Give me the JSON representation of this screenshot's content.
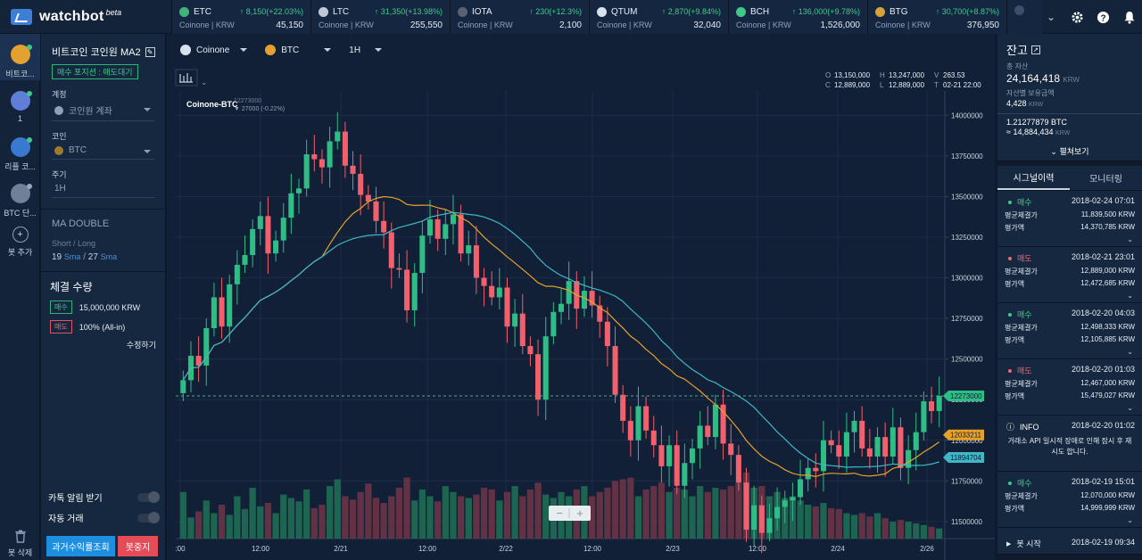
{
  "brand": {
    "name": "watchbot",
    "beta": "beta"
  },
  "tickers": [
    {
      "symbol": "ETC",
      "change": "↑ 8,150(+22.03%)",
      "exchange": "Coinone | KRW",
      "price": "45,150",
      "color": "#3fb37a"
    },
    {
      "symbol": "LTC",
      "change": "↑ 31,350(+13.98%)",
      "exchange": "Coinone | KRW",
      "price": "255,550",
      "color": "#bfc7d3"
    },
    {
      "symbol": "IOTA",
      "change": "↑ 230(+12.3%)",
      "exchange": "Coinone | KRW",
      "price": "2,100",
      "color": "#5a6170"
    },
    {
      "symbol": "QTUM",
      "change": "↑ 2,870(+9.84%)",
      "exchange": "Coinone | KRW",
      "price": "32,040",
      "color": "#d8e2ee"
    },
    {
      "symbol": "BCH",
      "change": "↑ 136,000(+9.78%)",
      "exchange": "Coinone | KRW",
      "price": "1,526,000",
      "color": "#3ec98b"
    },
    {
      "symbol": "BTG",
      "change": "↑ 30,700(+8.87%)",
      "exchange": "Coinone | KRW",
      "price": "376,950",
      "color": "#d6a33b"
    }
  ],
  "top_icons": [
    "chevron-down-icon",
    "gear-icon",
    "help-icon",
    "bell-icon"
  ],
  "rail": {
    "items": [
      {
        "label": "비트코...",
        "icon": "bitcoin-icon",
        "color": "#e3a12f",
        "dot": "green"
      },
      {
        "label": "1",
        "icon": "ethereum-icon",
        "color": "#5f7fd6",
        "dot": "green"
      },
      {
        "label": "리플 코...",
        "icon": "ripple-icon",
        "color": "#3a79d0",
        "dot": "green"
      },
      {
        "label": "BTC 단...",
        "icon": "bot-icon",
        "color": "#6f8098",
        "dot": "gray"
      }
    ],
    "add_label": "봇 추가",
    "delete_label": "봇 삭제"
  },
  "bot": {
    "title": "비트코인 코인원 MA2",
    "position_badge": "매수 포지션 : 매도대기",
    "account_label": "계정",
    "account_value": "코인원 계좌",
    "coin_label": "코인",
    "coin_value": "BTC",
    "period_label": "주기",
    "period_value": "1H",
    "strategy_name": "MA DOUBLE",
    "short_long_label": "Short / Long",
    "short_value": "19",
    "long_value": "27",
    "ma_unit": "Sma",
    "exec_title": "체결 수량",
    "buy_tag": "매수",
    "buy_amount": "15,000,000 KRW",
    "sell_tag": "매도",
    "sell_amount": "100% (All-in)",
    "modify_label": "수정하기",
    "kakao_label": "카톡 알림 받기",
    "auto_label": "자동 거래",
    "history_button": "과거수익률조회",
    "stop_button": "봇중지"
  },
  "chart_bar": {
    "exchange": "Coinone",
    "coin": "BTC",
    "interval": "1H"
  },
  "chart_data": {
    "type": "candlestick",
    "title": "Coinone-BTC",
    "last_price": "12273000",
    "last_change": "27000 (-0.22%)",
    "ohlc": {
      "o_label": "O",
      "o": "13,150,000",
      "h_label": "H",
      "h": "13,247,000",
      "v_label": "V",
      "v": "263.53",
      "c_label": "C",
      "c": "12,889,000",
      "l_label": "L",
      "l": "12,889,000",
      "t_label": "T",
      "t": "02-21 22:00"
    },
    "y_ticks": [
      11500000,
      11750000,
      12000000,
      12250000,
      12500000,
      12750000,
      13000000,
      13250000,
      13500000,
      13750000,
      14000000
    ],
    "ylim": [
      11395000,
      14150000
    ],
    "x_ticks": [
      ":00",
      "12:00",
      "2/21",
      "12:00",
      "2/22",
      "12:00",
      "2/23",
      "12:00",
      "2/24",
      "2/26"
    ],
    "price_labels": {
      "last": "12273000",
      "ma_short": "12033211",
      "ma_long": "11894704"
    },
    "colors": {
      "up": "#2ebd85",
      "down": "#f0616d",
      "ma_short": "#e6a12a",
      "ma_long": "#3fb7c7"
    },
    "closes": [
      12370000,
      12520000,
      12460000,
      12690000,
      12880000,
      12700000,
      12960000,
      13080000,
      13140000,
      13300000,
      13380000,
      13150000,
      13230000,
      13370000,
      13520000,
      13550000,
      13760000,
      13730000,
      13680000,
      13840000,
      13900000,
      13690000,
      13640000,
      13510000,
      13470000,
      13350000,
      13280000,
      13060000,
      13050000,
      12800000,
      13030000,
      13260000,
      13360000,
      13240000,
      13330000,
      13390000,
      13150000,
      13200000,
      13000000,
      12950000,
      12880000,
      12940000,
      12700000,
      12780000,
      12580000,
      12530000,
      12250000,
      12640000,
      12790000,
      12840000,
      12980000,
      12810000,
      12920000,
      12830000,
      12730000,
      12580000,
      12280000,
      12120000,
      12000000,
      12210000,
      12060000,
      11970000,
      11840000,
      11970000,
      11720000,
      11860000,
      11950000,
      12090000,
      12020000,
      12220000,
      11980000,
      11910000,
      11740000,
      11450000,
      11600000,
      11430000,
      11520000,
      11590000,
      11630000,
      11650000,
      11760000,
      11830000,
      11810000,
      12000000,
      11970000,
      11900000,
      12050000,
      12120000,
      11950000,
      11900000,
      12020000,
      11900000,
      12080000,
      11830000,
      11940000,
      12050000,
      12240000,
      12180000,
      12273000
    ],
    "volumes": [
      0.55,
      0.25,
      0.32,
      0.45,
      0.3,
      0.4,
      0.28,
      0.5,
      0.35,
      0.6,
      0.38,
      0.42,
      0.3,
      0.52,
      0.48,
      0.44,
      0.58,
      0.36,
      0.4,
      0.62,
      0.7,
      0.5,
      0.46,
      0.55,
      0.65,
      0.48,
      0.42,
      0.5,
      0.6,
      0.72,
      0.45,
      0.58,
      0.5,
      0.44,
      0.62,
      0.55,
      0.5,
      0.48,
      0.52,
      0.6,
      0.58,
      0.45,
      0.55,
      0.62,
      0.5,
      0.58,
      0.66,
      0.52,
      0.48,
      0.55,
      0.5,
      0.58,
      0.62,
      0.5,
      0.55,
      0.6,
      0.68,
      0.7,
      0.72,
      0.5,
      0.58,
      0.62,
      0.66,
      0.55,
      0.6,
      0.58,
      0.5,
      0.62,
      0.55,
      0.6,
      0.58,
      0.62,
      0.66,
      0.78,
      0.6,
      0.62,
      0.5,
      0.55,
      0.48,
      0.5,
      0.45,
      0.4,
      0.38,
      0.42,
      0.36,
      0.35,
      0.3,
      0.28,
      0.3,
      0.26,
      0.3,
      0.24,
      0.2,
      0.22,
      0.2,
      0.18,
      0.16,
      0.14,
      0.12
    ]
  },
  "zoom": {
    "minus": "−",
    "plus": "+"
  },
  "balance": {
    "title": "잔고",
    "total_label": "총 자산",
    "total_value": "24,164,418",
    "total_unit": "KRW",
    "coin_value_label": "자산별 보유금액",
    "coin_value": "4,428",
    "coin_unit": "KRW",
    "btc_amount": "1.21277879 BTC",
    "btc_krw": "≈ 14,884,434",
    "btc_krw_unit": "KRW",
    "expand_label": "펼쳐보기"
  },
  "tabs": [
    "시그널이력",
    "모니터링"
  ],
  "signals": [
    {
      "type": "buy",
      "label": "매수",
      "time": "2018-02-24 07:01",
      "avg_label": "평균체결가",
      "avg": "11,839,500 KRW",
      "eval_label": "평가액",
      "eval": "14,370,785 KRW"
    },
    {
      "type": "sell",
      "label": "매도",
      "time": "2018-02-21 23:01",
      "avg_label": "평균체결가",
      "avg": "12,889,000 KRW",
      "eval_label": "평가액",
      "eval": "12,472,685 KRW"
    },
    {
      "type": "buy",
      "label": "매수",
      "time": "2018-02-20 04:03",
      "avg_label": "평균체결가",
      "avg": "12,498,333 KRW",
      "eval_label": "평가액",
      "eval": "12,105,885 KRW"
    },
    {
      "type": "sell",
      "label": "매도",
      "time": "2018-02-20 01:03",
      "avg_label": "평균체결가",
      "avg": "12,467,000 KRW",
      "eval_label": "평가액",
      "eval": "15,479,027 KRW"
    },
    {
      "type": "info",
      "label": "INFO",
      "time": "2018-02-20 01:02",
      "message": "거래소 API 일시적 장애로 인해 잠시 후 재시도 합니다."
    },
    {
      "type": "buy",
      "label": "매수",
      "time": "2018-02-19 15:01",
      "avg_label": "평균체결가",
      "avg": "12,070,000 KRW",
      "eval_label": "평가액",
      "eval": "14,999,999 KRW"
    },
    {
      "type": "start",
      "label": "봇 시작",
      "time": "2018-02-19 09:34"
    }
  ]
}
